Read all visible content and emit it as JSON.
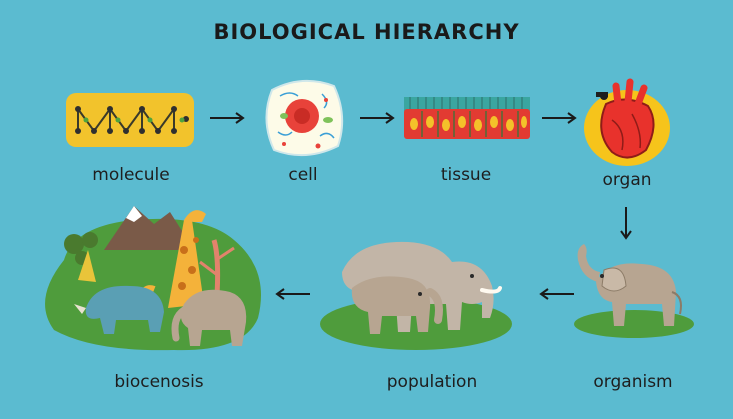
{
  "title": "BIOLOGICAL HIERARCHY",
  "stages": [
    {
      "id": "molecule",
      "label": "molecule",
      "icon": "molecule-icon"
    },
    {
      "id": "cell",
      "label": "cell",
      "icon": "cell-icon"
    },
    {
      "id": "tissue",
      "label": "tissue",
      "icon": "tissue-icon"
    },
    {
      "id": "organ",
      "label": "organ",
      "icon": "heart-icon"
    },
    {
      "id": "organism",
      "label": "organism",
      "icon": "elephant-icon"
    },
    {
      "id": "population",
      "label": "population",
      "icon": "elephant-herd-icon"
    },
    {
      "id": "biocenosis",
      "label": "biocenosis",
      "icon": "ecosystem-icon"
    }
  ],
  "colors": {
    "background": "#5bbbd0",
    "grass": "#4f9c3c",
    "molecule_bg": "#f2c32c",
    "cell_bg": "#fdfbe8",
    "organ_bg": "#f6c41b",
    "heart": "#e8322c",
    "elephant": "#b7a591"
  }
}
